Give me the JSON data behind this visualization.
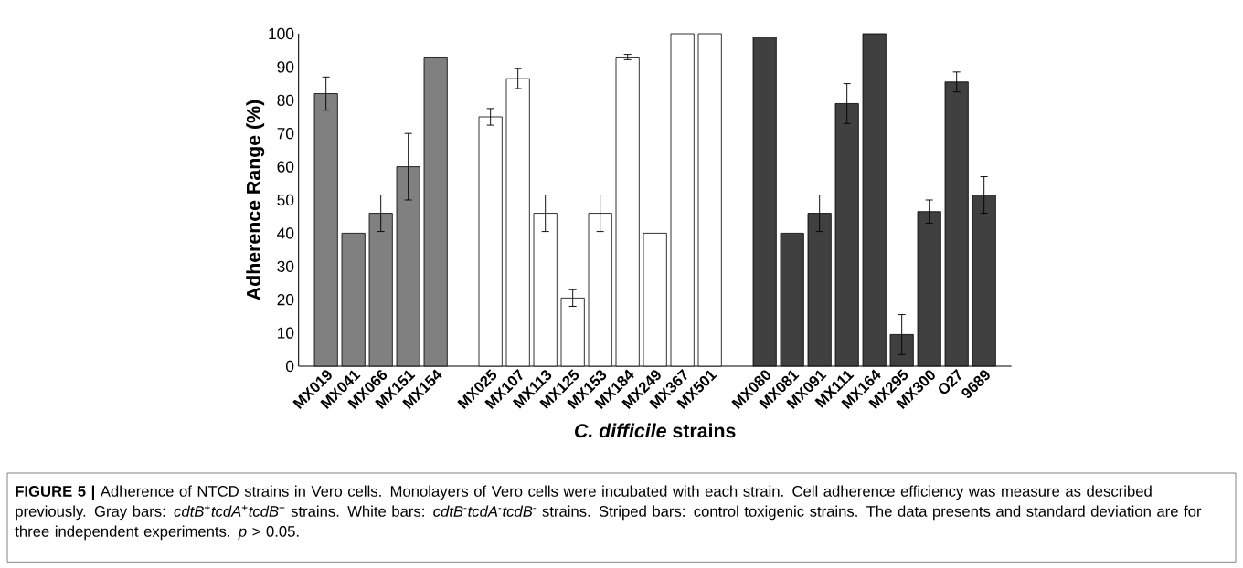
{
  "chart_data": {
    "type": "bar",
    "xlabel": "*C. difficile* strains",
    "ylabel": "Adherence Range (%)",
    "categories": [
      "MX019",
      "MX041",
      "MX066",
      "MX151",
      "MX154",
      null,
      "MX025",
      "MX107",
      "MX113",
      "MX125",
      "MX153",
      "MX184",
      "MX249",
      "MX367",
      "MX501",
      null,
      "MX080",
      "MX081",
      "MX091",
      "MX111",
      "MX164",
      "MX295",
      "MX300",
      "O27",
      "9689"
    ],
    "series": [
      {
        "color": "#808080",
        "values": [
          82,
          40,
          46,
          60,
          93,
          null,
          null,
          null,
          null,
          null,
          null,
          null,
          null,
          null,
          null,
          null,
          null,
          null,
          null,
          null,
          null,
          null,
          null,
          null,
          null
        ],
        "errors": [
          5,
          null,
          5.5,
          10,
          null,
          null,
          null,
          null,
          null,
          null,
          null,
          null,
          null,
          null,
          null,
          null,
          null,
          null,
          null,
          null,
          null,
          null,
          null,
          null,
          null
        ]
      },
      {
        "color": "#ffffff",
        "values": [
          null,
          null,
          null,
          null,
          null,
          null,
          75,
          86.5,
          46,
          20.5,
          46,
          93,
          40,
          100,
          100,
          null,
          null,
          null,
          null,
          null,
          null,
          null,
          null,
          null,
          null
        ],
        "errors": [
          null,
          null,
          null,
          null,
          null,
          null,
          2.5,
          3,
          5.5,
          2.5,
          5.5,
          0.8,
          null,
          null,
          null,
          null,
          null,
          null,
          null,
          null,
          null,
          null,
          null,
          null,
          null
        ]
      },
      {
        "color": "#404040",
        "values": [
          null,
          null,
          null,
          null,
          null,
          null,
          null,
          null,
          null,
          null,
          null,
          null,
          null,
          null,
          null,
          null,
          99,
          40,
          46,
          79,
          100,
          9.5,
          46.5,
          85.5,
          51.5
        ],
        "errors": [
          null,
          null,
          null,
          null,
          null,
          null,
          null,
          null,
          null,
          null,
          null,
          null,
          null,
          null,
          null,
          null,
          null,
          null,
          5.5,
          6,
          null,
          6,
          3.5,
          3,
          5.5
        ]
      }
    ],
    "ylim": [
      0,
      100
    ],
    "yticks": [
      0,
      10,
      20,
      30,
      40,
      50,
      60,
      70,
      80,
      90,
      100
    ],
    "annotations": [
      "**FIGURE 5 |** Adherence of NTCD strains in Vero cells. Monolayers of Vero cells were incubated with each strain. Cell adherence efficiency was measure as described previously. Gray bars: *cdtB*$^{+}$*tcdA*$^{+}$*tcdB*$^{+}$ strains. White bars: *cdtB*$^{-}$*tcdA*$^{-}$*tcdB*$^{-}$ strains. Striped bars: control toxigenic strains. The data presents and standard deviation are for three independent experiments. *p* > 0.05."
    ]
  }
}
